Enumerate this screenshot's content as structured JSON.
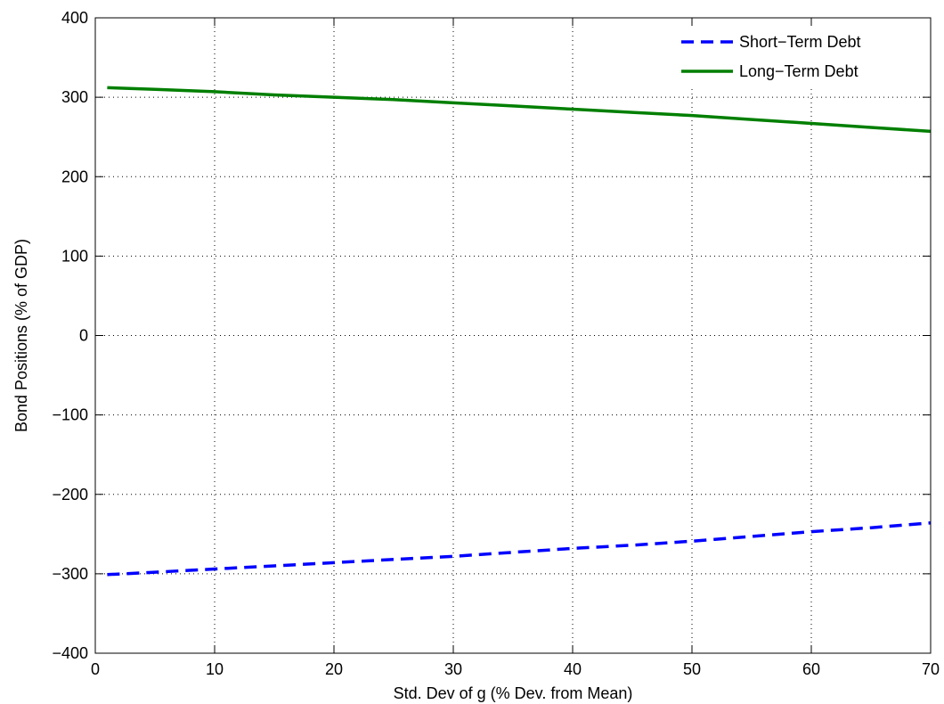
{
  "chart_data": {
    "type": "line",
    "title": "",
    "xlabel": "Std. Dev of g (% Dev. from Mean)",
    "ylabel": "Bond Positions (% of GDP)",
    "xlim": [
      0,
      70
    ],
    "ylim": [
      -400,
      400
    ],
    "xticks": [
      0,
      10,
      20,
      30,
      40,
      50,
      60,
      70
    ],
    "yticks": [
      -400,
      -300,
      -200,
      -100,
      0,
      100,
      200,
      300,
      400
    ],
    "xtick_labels": [
      "0",
      "10",
      "20",
      "30",
      "40",
      "50",
      "60",
      "70"
    ],
    "ytick_labels": [
      "−400",
      "−300",
      "−200",
      "−100",
      "0",
      "100",
      "200",
      "300",
      "400"
    ],
    "grid": true,
    "legend_position": "top-right",
    "series": [
      {
        "name": "Short−Term Debt",
        "color": "#0000ff",
        "style": "dashed",
        "x": [
          1,
          5,
          10,
          15,
          20,
          25,
          30,
          35,
          40,
          45,
          50,
          55,
          60,
          65,
          70
        ],
        "y": [
          -301,
          -298,
          -294,
          -290,
          -286,
          -282,
          -278,
          -273,
          -268,
          -264,
          -259,
          -253,
          -247,
          -242,
          -236
        ]
      },
      {
        "name": "Long−Term Debt",
        "color": "#007f00",
        "style": "solid",
        "x": [
          1,
          5,
          10,
          15,
          20,
          25,
          30,
          35,
          40,
          45,
          50,
          55,
          60,
          65,
          70
        ],
        "y": [
          312,
          310,
          307,
          303,
          300,
          297,
          293,
          289,
          285,
          281,
          277,
          272,
          267,
          262,
          257
        ]
      }
    ]
  }
}
